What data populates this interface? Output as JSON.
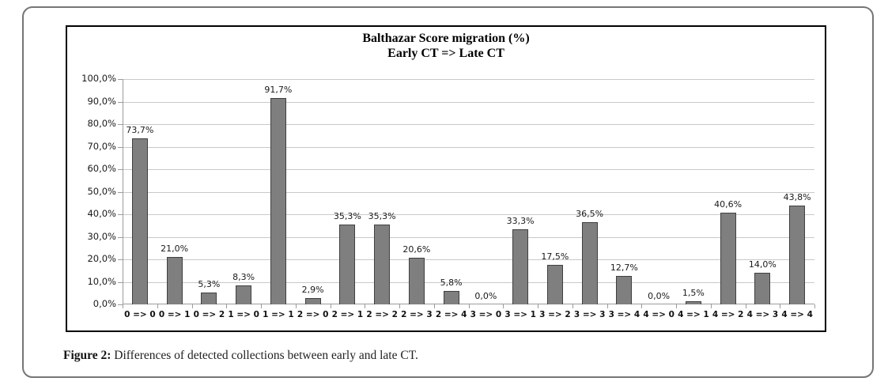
{
  "figure": {
    "caption_label": "Figure 2:",
    "caption_text": " Differences of detected collections between early and late CT."
  },
  "chart_data": {
    "type": "bar",
    "title": "Balthazar Score migration (%)",
    "subtitle": "Early CT => Late CT",
    "categories": [
      "0 => 0",
      "0 => 1",
      "0 => 2",
      "1 => 0",
      "1 => 1",
      "2 => 0",
      "2 => 1",
      "2 => 2",
      "2 => 3",
      "2 => 4",
      "3 => 0",
      "3 => 1",
      "3 => 2",
      "3 => 3",
      "3 => 4",
      "4 => 0",
      "4 => 1",
      "4 => 2",
      "4 => 3",
      "4 => 4"
    ],
    "values": [
      73.7,
      21.0,
      5.3,
      8.3,
      91.7,
      2.9,
      35.3,
      35.3,
      20.6,
      5.8,
      0.0,
      33.3,
      17.5,
      36.5,
      12.7,
      0.0,
      1.5,
      40.6,
      14.0,
      43.8
    ],
    "value_labels": [
      "73,7%",
      "21,0%",
      "5,3%",
      "8,3%",
      "91,7%",
      "2,9%",
      "35,3%",
      "35,3%",
      "20,6%",
      "5,8%",
      "0,0%",
      "33,3%",
      "17,5%",
      "36,5%",
      "12,7%",
      "0,0%",
      "1,5%",
      "40,6%",
      "14,0%",
      "43,8%"
    ],
    "y_tick_labels": [
      "100,0%",
      "90,0%",
      "80,0%",
      "70,0%",
      "60,0%",
      "50,0%",
      "40,0%",
      "30,0%",
      "20,0%",
      "10,0%",
      "0,0%"
    ],
    "ylim": [
      0,
      100
    ],
    "y_step": 10,
    "grid": "horizontal",
    "legend": "none",
    "decimal_separator": ",",
    "bar_color": "#7F7F7F",
    "bar_border_color": "#404040",
    "gridline_color": "#C9C9C9",
    "axis_color": "#9C9C9C"
  }
}
